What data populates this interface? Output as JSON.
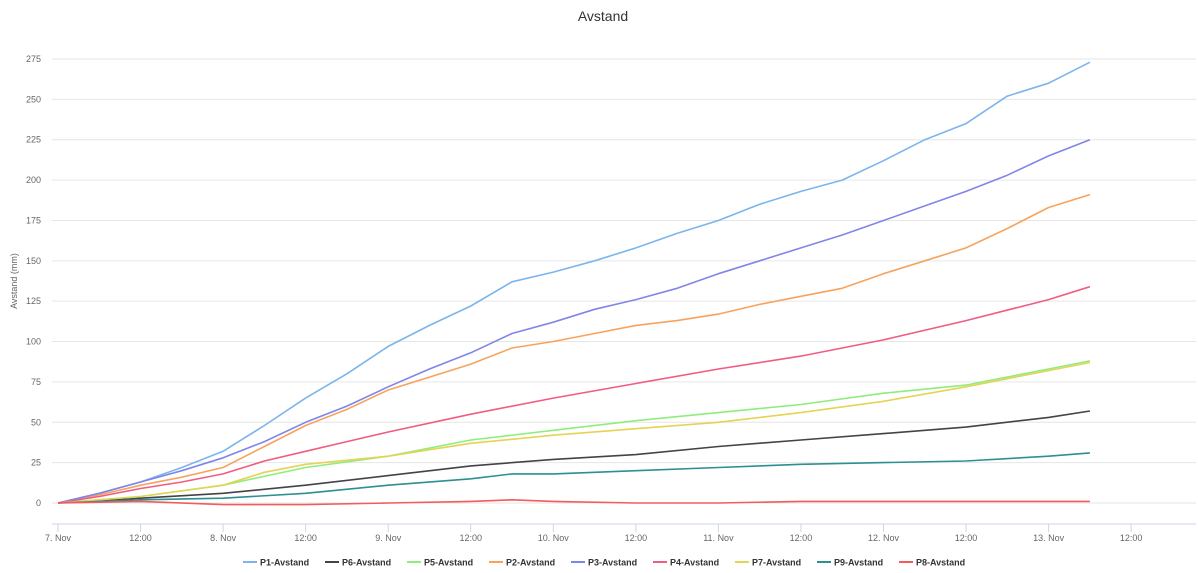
{
  "chart_data": {
    "type": "line",
    "title": "Avstand",
    "ylabel": "Avstand (mm)",
    "xlabel": "",
    "ylim": [
      0,
      275
    ],
    "xlim_days": [
      0,
      7
    ],
    "grid": "horizontal",
    "legend_position": "bottom",
    "x_ticks": [
      {
        "label": "7. Nov",
        "t": 0
      },
      {
        "label": "12:00",
        "t": 0.5
      },
      {
        "label": "8. Nov",
        "t": 1
      },
      {
        "label": "12:00",
        "t": 1.5
      },
      {
        "label": "9. Nov",
        "t": 2
      },
      {
        "label": "12:00",
        "t": 2.5
      },
      {
        "label": "10. Nov",
        "t": 3
      },
      {
        "label": "12:00",
        "t": 3.5
      },
      {
        "label": "11. Nov",
        "t": 4
      },
      {
        "label": "12:00",
        "t": 4.5
      },
      {
        "label": "12. Nov",
        "t": 5
      },
      {
        "label": "12:00",
        "t": 5.5
      },
      {
        "label": "13. Nov",
        "t": 6
      },
      {
        "label": "12:00",
        "t": 6.5
      }
    ],
    "y_ticks": [
      0,
      25,
      50,
      75,
      100,
      125,
      150,
      175,
      200,
      225,
      250,
      275
    ],
    "series": [
      {
        "name": "P1-Avstand",
        "color": "#7cb5ec",
        "points": [
          [
            0,
            0
          ],
          [
            0.25,
            6
          ],
          [
            0.5,
            13
          ],
          [
            0.75,
            22
          ],
          [
            1,
            32
          ],
          [
            1.25,
            48
          ],
          [
            1.5,
            65
          ],
          [
            1.75,
            80
          ],
          [
            2,
            97
          ],
          [
            2.25,
            110
          ],
          [
            2.5,
            122
          ],
          [
            2.75,
            137
          ],
          [
            3,
            143
          ],
          [
            3.25,
            150
          ],
          [
            3.5,
            158
          ],
          [
            3.75,
            167
          ],
          [
            4,
            175
          ],
          [
            4.25,
            185
          ],
          [
            4.5,
            193
          ],
          [
            4.75,
            200
          ],
          [
            5,
            212
          ],
          [
            5.25,
            225
          ],
          [
            5.5,
            235
          ],
          [
            5.75,
            252
          ],
          [
            6,
            260
          ],
          [
            6.25,
            273
          ]
        ]
      },
      {
        "name": "P6-Avstand",
        "color": "#434348",
        "points": [
          [
            0,
            0
          ],
          [
            0.5,
            3
          ],
          [
            1,
            6
          ],
          [
            1.5,
            11
          ],
          [
            2,
            17
          ],
          [
            2.5,
            23
          ],
          [
            3,
            27
          ],
          [
            3.5,
            30
          ],
          [
            4,
            35
          ],
          [
            4.5,
            39
          ],
          [
            5,
            43
          ],
          [
            5.5,
            47
          ],
          [
            6,
            53
          ],
          [
            6.25,
            57
          ]
        ]
      },
      {
        "name": "P5-Avstand",
        "color": "#90ed7d",
        "points": [
          [
            0,
            0
          ],
          [
            0.5,
            4
          ],
          [
            1,
            11
          ],
          [
            1.5,
            22
          ],
          [
            2,
            29
          ],
          [
            2.5,
            39
          ],
          [
            3,
            45
          ],
          [
            3.5,
            51
          ],
          [
            4,
            56
          ],
          [
            4.5,
            61
          ],
          [
            5,
            68
          ],
          [
            5.5,
            73
          ],
          [
            6,
            83
          ],
          [
            6.25,
            88
          ]
        ]
      },
      {
        "name": "P2-Avstand",
        "color": "#f7a35c",
        "points": [
          [
            0,
            0
          ],
          [
            0.25,
            5
          ],
          [
            0.5,
            11
          ],
          [
            0.75,
            16
          ],
          [
            1,
            22
          ],
          [
            1.25,
            35
          ],
          [
            1.5,
            48
          ],
          [
            1.75,
            58
          ],
          [
            2,
            70
          ],
          [
            2.25,
            78
          ],
          [
            2.5,
            86
          ],
          [
            2.75,
            96
          ],
          [
            3,
            100
          ],
          [
            3.25,
            105
          ],
          [
            3.5,
            110
          ],
          [
            3.75,
            113
          ],
          [
            4,
            117
          ],
          [
            4.25,
            123
          ],
          [
            4.5,
            128
          ],
          [
            4.75,
            133
          ],
          [
            5,
            142
          ],
          [
            5.25,
            150
          ],
          [
            5.5,
            158
          ],
          [
            5.75,
            170
          ],
          [
            6,
            183
          ],
          [
            6.25,
            191
          ]
        ]
      },
      {
        "name": "P3-Avstand",
        "color": "#8085e9",
        "points": [
          [
            0,
            0
          ],
          [
            0.25,
            6
          ],
          [
            0.5,
            13
          ],
          [
            0.75,
            20
          ],
          [
            1,
            28
          ],
          [
            1.25,
            38
          ],
          [
            1.5,
            50
          ],
          [
            1.75,
            60
          ],
          [
            2,
            72
          ],
          [
            2.25,
            83
          ],
          [
            2.5,
            93
          ],
          [
            2.75,
            105
          ],
          [
            3,
            112
          ],
          [
            3.25,
            120
          ],
          [
            3.5,
            126
          ],
          [
            3.75,
            133
          ],
          [
            4,
            142
          ],
          [
            4.25,
            150
          ],
          [
            4.5,
            158
          ],
          [
            4.75,
            166
          ],
          [
            5,
            175
          ],
          [
            5.25,
            184
          ],
          [
            5.5,
            193
          ],
          [
            5.75,
            203
          ],
          [
            6,
            215
          ],
          [
            6.25,
            225
          ]
        ]
      },
      {
        "name": "P4-Avstand",
        "color": "#f15c80",
        "points": [
          [
            0,
            0
          ],
          [
            0.25,
            4
          ],
          [
            0.5,
            9
          ],
          [
            0.75,
            13
          ],
          [
            1,
            18
          ],
          [
            1.25,
            26
          ],
          [
            1.5,
            32
          ],
          [
            1.75,
            38
          ],
          [
            2,
            44
          ],
          [
            2.5,
            55
          ],
          [
            3,
            65
          ],
          [
            3.5,
            74
          ],
          [
            4,
            83
          ],
          [
            4.5,
            91
          ],
          [
            5,
            101
          ],
          [
            5.5,
            113
          ],
          [
            6,
            126
          ],
          [
            6.25,
            134
          ]
        ]
      },
      {
        "name": "P7-Avstand",
        "color": "#e4d354",
        "points": [
          [
            0,
            0
          ],
          [
            0.5,
            4
          ],
          [
            1,
            11
          ],
          [
            1.25,
            19
          ],
          [
            1.5,
            24
          ],
          [
            2,
            29
          ],
          [
            2.5,
            37
          ],
          [
            3,
            42
          ],
          [
            3.5,
            46
          ],
          [
            4,
            50
          ],
          [
            4.5,
            56
          ],
          [
            5,
            63
          ],
          [
            5.5,
            72
          ],
          [
            6,
            82
          ],
          [
            6.25,
            87
          ]
        ]
      },
      {
        "name": "P9-Avstand",
        "color": "#2b908f",
        "points": [
          [
            0,
            0
          ],
          [
            0.5,
            2
          ],
          [
            1,
            3
          ],
          [
            1.5,
            6
          ],
          [
            2,
            11
          ],
          [
            2.5,
            15
          ],
          [
            2.75,
            18
          ],
          [
            3,
            18
          ],
          [
            3.5,
            20
          ],
          [
            4,
            22
          ],
          [
            4.5,
            24
          ],
          [
            5,
            25
          ],
          [
            5.5,
            26
          ],
          [
            6,
            29
          ],
          [
            6.25,
            31
          ]
        ]
      },
      {
        "name": "P8-Avstand",
        "color": "#f45b5b",
        "points": [
          [
            0,
            0
          ],
          [
            0.5,
            1
          ],
          [
            1,
            -1
          ],
          [
            1.5,
            -1
          ],
          [
            2,
            0
          ],
          [
            2.5,
            1
          ],
          [
            2.75,
            2
          ],
          [
            3,
            1
          ],
          [
            3.5,
            0
          ],
          [
            4,
            0
          ],
          [
            4.5,
            1
          ],
          [
            5,
            1
          ],
          [
            5.5,
            1
          ],
          [
            6,
            1
          ],
          [
            6.25,
            1
          ]
        ]
      }
    ]
  }
}
